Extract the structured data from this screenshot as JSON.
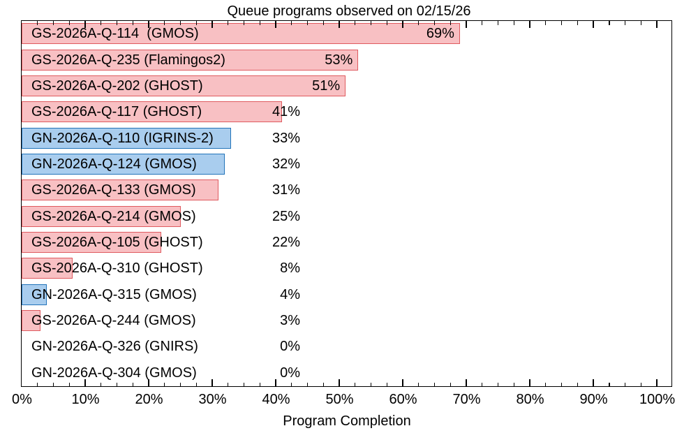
{
  "chart_data": {
    "type": "bar",
    "orientation": "horizontal",
    "title": "Queue programs observed on 02/15/26",
    "xlabel": "Program Completion",
    "x_axis": {
      "min": 0,
      "max": 102.3,
      "major_tick_step": 10,
      "minor_tick_step": 2.5,
      "tick_labels": [
        "0%",
        "10%",
        "20%",
        "30%",
        "40%",
        "50%",
        "60%",
        "70%",
        "80%",
        "90%",
        "100%"
      ]
    },
    "grid": false,
    "legend": false,
    "palette": {
      "GS": {
        "fill": "#f8c0c3",
        "edge": "#df5a5f"
      },
      "GN": {
        "fill": "#a9cdee",
        "edge": "#2273b9"
      }
    },
    "bars": [
      {
        "label": "GS-2026A-Q-114  (GMOS)",
        "program": "GS-2026A-Q-114",
        "instrument": "GMOS",
        "site": "GS",
        "value": 69,
        "value_label": "69%"
      },
      {
        "label": "GS-2026A-Q-235 (Flamingos2)",
        "program": "GS-2026A-Q-235",
        "instrument": "Flamingos2",
        "site": "GS",
        "value": 53,
        "value_label": "53%"
      },
      {
        "label": "GS-2026A-Q-202 (GHOST)",
        "program": "GS-2026A-Q-202",
        "instrument": "GHOST",
        "site": "GS",
        "value": 51,
        "value_label": "51%"
      },
      {
        "label": "GS-2026A-Q-117 (GHOST)",
        "program": "GS-2026A-Q-117",
        "instrument": "GHOST",
        "site": "GS",
        "value": 41,
        "value_label": "41%"
      },
      {
        "label": "GN-2026A-Q-110 (IGRINS-2)",
        "program": "GN-2026A-Q-110",
        "instrument": "IGRINS-2",
        "site": "GN",
        "value": 33,
        "value_label": "33%"
      },
      {
        "label": "GN-2026A-Q-124 (GMOS)",
        "program": "GN-2026A-Q-124",
        "instrument": "GMOS",
        "site": "GN",
        "value": 32,
        "value_label": "32%"
      },
      {
        "label": "GS-2026A-Q-133 (GMOS)",
        "program": "GS-2026A-Q-133",
        "instrument": "GMOS",
        "site": "GS",
        "value": 31,
        "value_label": "31%"
      },
      {
        "label": "GS-2026A-Q-214 (GMOS)",
        "program": "GS-2026A-Q-214",
        "instrument": "GMOS",
        "site": "GS",
        "value": 25,
        "value_label": "25%"
      },
      {
        "label": "GS-2026A-Q-105 (GHOST)",
        "program": "GS-2026A-Q-105",
        "instrument": "GHOST",
        "site": "GS",
        "value": 22,
        "value_label": "22%"
      },
      {
        "label": "GS-2026A-Q-310 (GHOST)",
        "program": "GS-2026A-Q-310",
        "instrument": "GHOST",
        "site": "GS",
        "value": 8,
        "value_label": "8%"
      },
      {
        "label": "GN-2026A-Q-315 (GMOS)",
        "program": "GN-2026A-Q-315",
        "instrument": "GMOS",
        "site": "GN",
        "value": 4,
        "value_label": "4%"
      },
      {
        "label": "GS-2026A-Q-244 (GMOS)",
        "program": "GS-2026A-Q-244",
        "instrument": "GMOS",
        "site": "GS",
        "value": 3,
        "value_label": "3%"
      },
      {
        "label": "GN-2026A-Q-326 (GNIRS)",
        "program": "GN-2026A-Q-326",
        "instrument": "GNIRS",
        "site": "GN",
        "value": 0,
        "value_label": "0%"
      },
      {
        "label": "GN-2026A-Q-304 (GMOS)",
        "program": "GN-2026A-Q-304",
        "instrument": "GMOS",
        "site": "GN",
        "value": 0,
        "value_label": "0%"
      }
    ]
  }
}
